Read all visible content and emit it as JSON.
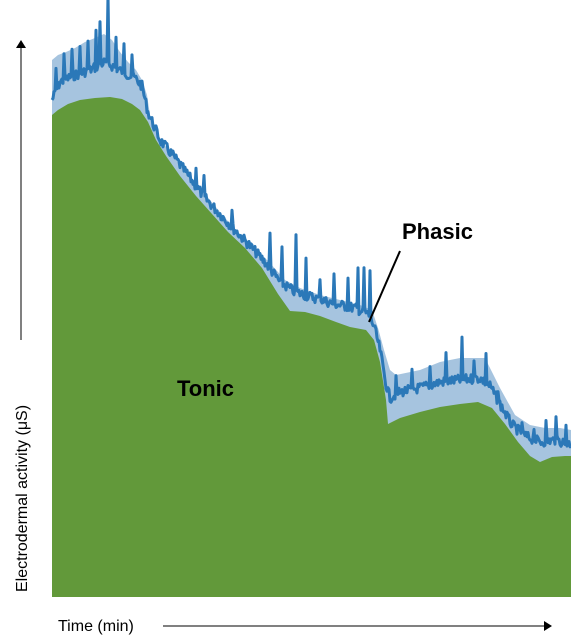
{
  "labels": {
    "phasic": "Phasic",
    "tonic": "Tonic",
    "x_axis": "Time  (min)",
    "y_axis": "Electrodermal activity  (μS)"
  },
  "colors": {
    "tonic_fill": "#62993a",
    "phasic_fill": "#a6c4df",
    "phasic_line": "#2b78b8",
    "axis": "#000000"
  }
}
